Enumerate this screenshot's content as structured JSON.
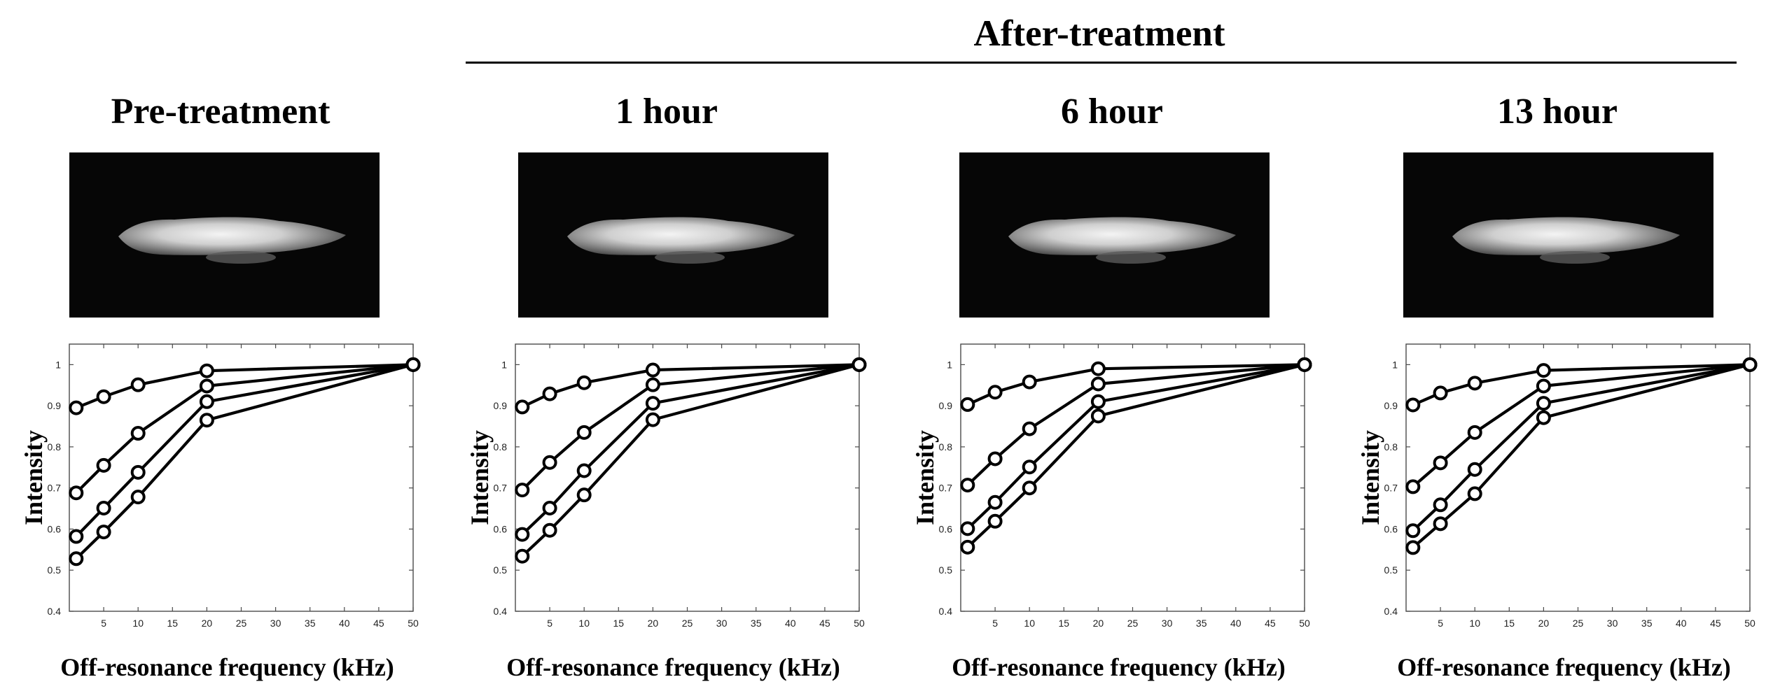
{
  "header": {
    "group_title": "After-treatment"
  },
  "panels": [
    {
      "title": "Pre-treatment"
    },
    {
      "title": "1 hour"
    },
    {
      "title": "6 hour"
    },
    {
      "title": "13 hour"
    }
  ],
  "chart_data": [
    {
      "type": "line",
      "title": "Pre-treatment",
      "xlabel": "Off-resonance frequency (kHz)",
      "ylabel": "Intensity",
      "xlim": [
        0,
        50
      ],
      "ylim": [
        0.4,
        1.05
      ],
      "xticks": [
        5,
        10,
        15,
        20,
        25,
        30,
        35,
        40,
        45,
        50
      ],
      "yticks": [
        0.4,
        0.5,
        0.6,
        0.7,
        0.8,
        0.9,
        1
      ],
      "x": [
        1,
        5,
        10,
        20,
        50
      ],
      "series": [
        {
          "values": [
            0.895,
            0.922,
            0.951,
            0.985,
            1.0
          ]
        },
        {
          "values": [
            0.688,
            0.755,
            0.833,
            0.948,
            1.0
          ]
        },
        {
          "values": [
            0.582,
            0.651,
            0.738,
            0.91,
            1.0
          ]
        },
        {
          "values": [
            0.528,
            0.593,
            0.678,
            0.865,
            1.0
          ]
        }
      ],
      "grid": false
    },
    {
      "type": "line",
      "title": "1 hour",
      "xlabel": "Off-resonance frequency (kHz)",
      "ylabel": "Intensity",
      "xlim": [
        0,
        50
      ],
      "ylim": [
        0.4,
        1.05
      ],
      "xticks": [
        5,
        10,
        15,
        20,
        25,
        30,
        35,
        40,
        45,
        50
      ],
      "yticks": [
        0.4,
        0.5,
        0.6,
        0.7,
        0.8,
        0.9,
        1
      ],
      "x": [
        1,
        5,
        10,
        20,
        50
      ],
      "series": [
        {
          "values": [
            0.897,
            0.929,
            0.956,
            0.987,
            1.0
          ]
        },
        {
          "values": [
            0.695,
            0.762,
            0.835,
            0.951,
            1.0
          ]
        },
        {
          "values": [
            0.587,
            0.651,
            0.742,
            0.906,
            1.0
          ]
        },
        {
          "values": [
            0.534,
            0.597,
            0.683,
            0.866,
            1.0
          ]
        }
      ],
      "grid": false
    },
    {
      "type": "line",
      "title": "6 hour",
      "xlabel": "Off-resonance frequency (kHz)",
      "ylabel": "Intensity",
      "xlim": [
        0,
        50
      ],
      "ylim": [
        0.4,
        1.05
      ],
      "xticks": [
        5,
        10,
        15,
        20,
        25,
        30,
        35,
        40,
        45,
        50
      ],
      "yticks": [
        0.4,
        0.5,
        0.6,
        0.7,
        0.8,
        0.9,
        1
      ],
      "x": [
        1,
        5,
        10,
        20,
        50
      ],
      "series": [
        {
          "values": [
            0.903,
            0.933,
            0.958,
            0.99,
            1.0
          ]
        },
        {
          "values": [
            0.707,
            0.771,
            0.844,
            0.953,
            1.0
          ]
        },
        {
          "values": [
            0.601,
            0.665,
            0.751,
            0.91,
            1.0
          ]
        },
        {
          "values": [
            0.556,
            0.619,
            0.7,
            0.875,
            1.0
          ]
        }
      ],
      "grid": false
    },
    {
      "type": "line",
      "title": "13 hour",
      "xlabel": "Off-resonance frequency (kHz)",
      "ylabel": "Intensity",
      "xlim": [
        0,
        50
      ],
      "ylim": [
        0.4,
        1.05
      ],
      "xticks": [
        5,
        10,
        15,
        20,
        25,
        30,
        35,
        40,
        45,
        50
      ],
      "yticks": [
        0.4,
        0.5,
        0.6,
        0.7,
        0.8,
        0.9,
        1
      ],
      "x": [
        1,
        5,
        10,
        20,
        50
      ],
      "series": [
        {
          "values": [
            0.902,
            0.931,
            0.955,
            0.986,
            1.0
          ]
        },
        {
          "values": [
            0.703,
            0.761,
            0.835,
            0.948,
            1.0
          ]
        },
        {
          "values": [
            0.596,
            0.659,
            0.745,
            0.906,
            1.0
          ]
        },
        {
          "values": [
            0.555,
            0.613,
            0.686,
            0.871,
            1.0
          ]
        }
      ],
      "grid": false
    }
  ]
}
